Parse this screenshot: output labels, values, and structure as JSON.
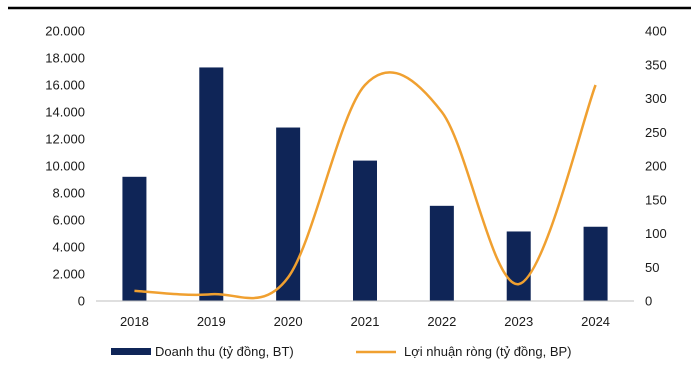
{
  "chart_data": {
    "type": "bar",
    "categories": [
      "2018",
      "2019",
      "2020",
      "2021",
      "2022",
      "2023",
      "2024"
    ],
    "series": [
      {
        "name": "Doanh thu (tỷ đồng, BT)",
        "kind": "bar",
        "axis": "left",
        "color": "#0f2557",
        "values": [
          9200,
          17300,
          12850,
          10400,
          7050,
          5150,
          5500
        ]
      },
      {
        "name": "Lợi nhuận ròng (tỷ đồng, BP)",
        "kind": "line",
        "axis": "right",
        "color": "#f0a030",
        "values": [
          15,
          10,
          35,
          320,
          280,
          25,
          320
        ]
      }
    ],
    "y_left": {
      "ylim": [
        0,
        20000
      ],
      "ticks": [
        "0",
        "2.000",
        "4.000",
        "6.000",
        "8.000",
        "10.000",
        "12.000",
        "14.000",
        "16.000",
        "18.000",
        "20.000"
      ]
    },
    "y_right": {
      "ylim": [
        0,
        400
      ],
      "ticks": [
        "0",
        "50",
        "100",
        "150",
        "200",
        "250",
        "300",
        "350",
        "400"
      ]
    },
    "title": "",
    "xlabel": "",
    "ylabel": "",
    "grid": false,
    "legend_position": "bottom"
  }
}
